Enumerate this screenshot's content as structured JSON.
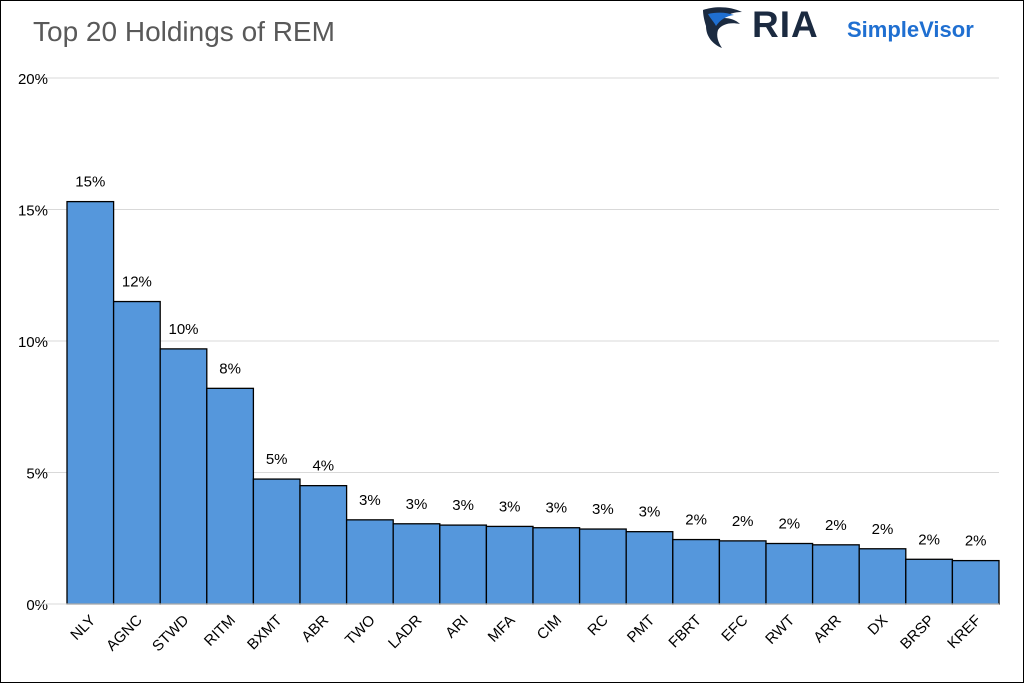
{
  "brand": {
    "name": "RIA",
    "product": "SimpleVisor"
  },
  "colors": {
    "bar": "#5597dc",
    "bar_stroke": "#000000",
    "grid": "#d9d9d9",
    "title": "#595959",
    "brand_dark": "#1b2a40",
    "brand_blue": "#1f6fd1"
  },
  "chart_data": {
    "type": "bar",
    "title": "Top 20 Holdings of REM",
    "xlabel": "",
    "ylabel": "",
    "categories": [
      "NLY",
      "AGNC",
      "STWD",
      "RITM",
      "BXMT",
      "ABR",
      "TWO",
      "LADR",
      "ARI",
      "MFA",
      "CIM",
      "RC",
      "PMT",
      "FBRT",
      "EFC",
      "RWT",
      "ARR",
      "DX",
      "BRSP",
      "KREF"
    ],
    "values": [
      15.3,
      11.5,
      9.7,
      8.2,
      4.75,
      4.5,
      3.2,
      3.05,
      3.0,
      2.95,
      2.9,
      2.85,
      2.75,
      2.45,
      2.4,
      2.3,
      2.25,
      2.1,
      1.7,
      1.65
    ],
    "data_labels": [
      "15%",
      "12%",
      "10%",
      "8%",
      "5%",
      "4%",
      "3%",
      "3%",
      "3%",
      "3%",
      "3%",
      "3%",
      "3%",
      "2%",
      "2%",
      "2%",
      "2%",
      "2%",
      "2%",
      "2%"
    ],
    "y_ticks": [
      0,
      5,
      10,
      15,
      20
    ],
    "y_tick_labels": [
      "0%",
      "5%",
      "10%",
      "15%",
      "20%"
    ],
    "ylim": [
      0,
      20
    ],
    "grid": true,
    "legend": "none"
  }
}
